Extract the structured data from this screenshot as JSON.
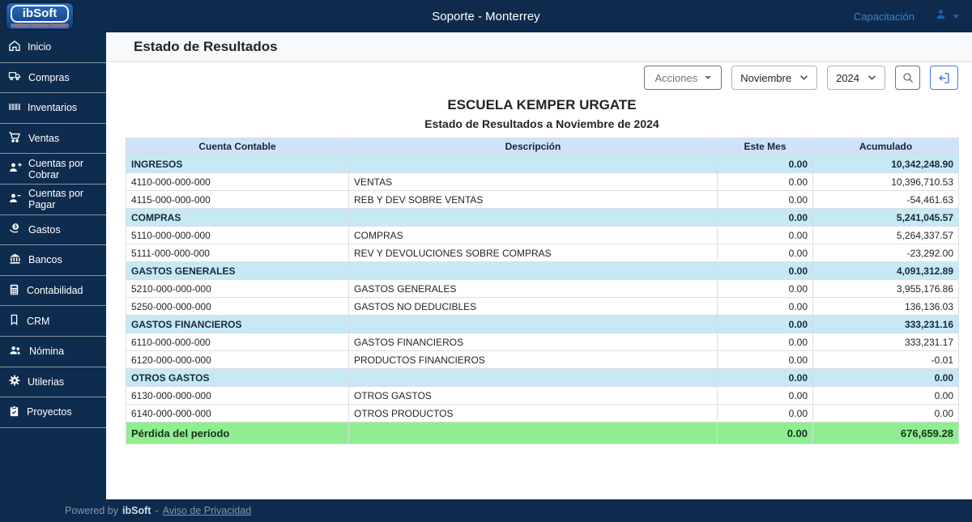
{
  "navbar": {
    "logo_text": "ibSoft",
    "logo_tagline": "Intelligent Business Software",
    "title": "Soporte - Monterrey",
    "capacitacion": "Capacitación"
  },
  "sidebar": {
    "items": [
      {
        "label": "Inicio",
        "icon": "home"
      },
      {
        "label": "Compras",
        "icon": "truck"
      },
      {
        "label": "Inventarios",
        "icon": "barcode"
      },
      {
        "label": "Ventas",
        "icon": "cart"
      },
      {
        "label": "Cuentas por Cobrar",
        "icon": "person-plus"
      },
      {
        "label": "Cuentas por Pagar",
        "icon": "person-minus"
      },
      {
        "label": "Gastos",
        "icon": "money-hand"
      },
      {
        "label": "Bancos",
        "icon": "bank"
      },
      {
        "label": "Contabilidad",
        "icon": "calculator"
      },
      {
        "label": "CRM",
        "icon": "bookmark"
      },
      {
        "label": "Nómina",
        "icon": "people"
      },
      {
        "label": "Utilerias",
        "icon": "gear"
      },
      {
        "label": "Proyectos",
        "icon": "clipboard"
      }
    ]
  },
  "page": {
    "title": "Estado de Resultados"
  },
  "toolbar": {
    "acciones": "Acciones",
    "month": "Noviembre",
    "year": "2024"
  },
  "report": {
    "company": "ESCUELA KEMPER URGATE",
    "subtitle": "Estado de Resultados a Noviembre de 2024",
    "columns": [
      "Cuenta Contable",
      "Descripción",
      "Este Mes",
      "Acumulado"
    ],
    "rows": [
      {
        "type": "section",
        "account": "INGRESOS",
        "desc": "",
        "este_mes": "0.00",
        "acumulado": "10,342,248.90"
      },
      {
        "type": "detail",
        "account": "4110-000-000-000",
        "desc": "VENTAS",
        "este_mes": "0.00",
        "acumulado": "10,396,710.53"
      },
      {
        "type": "detail",
        "account": "4115-000-000-000",
        "desc": "REB Y DEV SOBRE VENTAS",
        "este_mes": "0.00",
        "acumulado": "-54,461.63"
      },
      {
        "type": "section",
        "account": "COMPRAS",
        "desc": "",
        "este_mes": "0.00",
        "acumulado": "5,241,045.57"
      },
      {
        "type": "detail",
        "account": "5110-000-000-000",
        "desc": "COMPRAS",
        "este_mes": "0.00",
        "acumulado": "5,264,337.57"
      },
      {
        "type": "detail",
        "account": "5111-000-000-000",
        "desc": "REV Y DEVOLUCIONES SOBRE COMPRAS",
        "este_mes": "0.00",
        "acumulado": "-23,292.00"
      },
      {
        "type": "section",
        "account": "GASTOS GENERALES",
        "desc": "",
        "este_mes": "0.00",
        "acumulado": "4,091,312.89"
      },
      {
        "type": "detail",
        "account": "5210-000-000-000",
        "desc": "GASTOS GENERALES",
        "este_mes": "0.00",
        "acumulado": "3,955,176.86"
      },
      {
        "type": "detail",
        "account": "5250-000-000-000",
        "desc": "GASTOS NO DEDUCIBLES",
        "este_mes": "0.00",
        "acumulado": "136,136.03"
      },
      {
        "type": "section",
        "account": "GASTOS FINANCIEROS",
        "desc": "",
        "este_mes": "0.00",
        "acumulado": "333,231.16"
      },
      {
        "type": "detail",
        "account": "6110-000-000-000",
        "desc": "GASTOS FINANCIEROS",
        "este_mes": "0.00",
        "acumulado": "333,231.17"
      },
      {
        "type": "detail",
        "account": "6120-000-000-000",
        "desc": "PRODUCTOS FINANCIEROS",
        "este_mes": "0.00",
        "acumulado": "-0.01"
      },
      {
        "type": "section",
        "account": "OTROS GASTOS",
        "desc": "",
        "este_mes": "0.00",
        "acumulado": "0.00"
      },
      {
        "type": "detail",
        "account": "6130-000-000-000",
        "desc": "OTROS GASTOS",
        "este_mes": "0.00",
        "acumulado": "0.00"
      },
      {
        "type": "detail",
        "account": "6140-000-000-000",
        "desc": "OTROS PRODUCTOS",
        "este_mes": "0.00",
        "acumulado": "0.00"
      }
    ],
    "total_row": {
      "label": "Pérdida del período",
      "este_mes": "0.00",
      "acumulado": "676,659.28"
    }
  },
  "footer": {
    "powered_prefix": "Powered by",
    "brand": "ibSoft",
    "separator": "-",
    "privacy_link": "Aviso de Privacidad"
  },
  "colors": {
    "navy": "#0e2a4d",
    "table_header_bg": "#cfe2f7",
    "section_row_bg": "#c7e9f4",
    "total_row_bg": "#90ee90",
    "link_blue": "#2e86d9",
    "exit_button_blue": "#3d7be8"
  }
}
